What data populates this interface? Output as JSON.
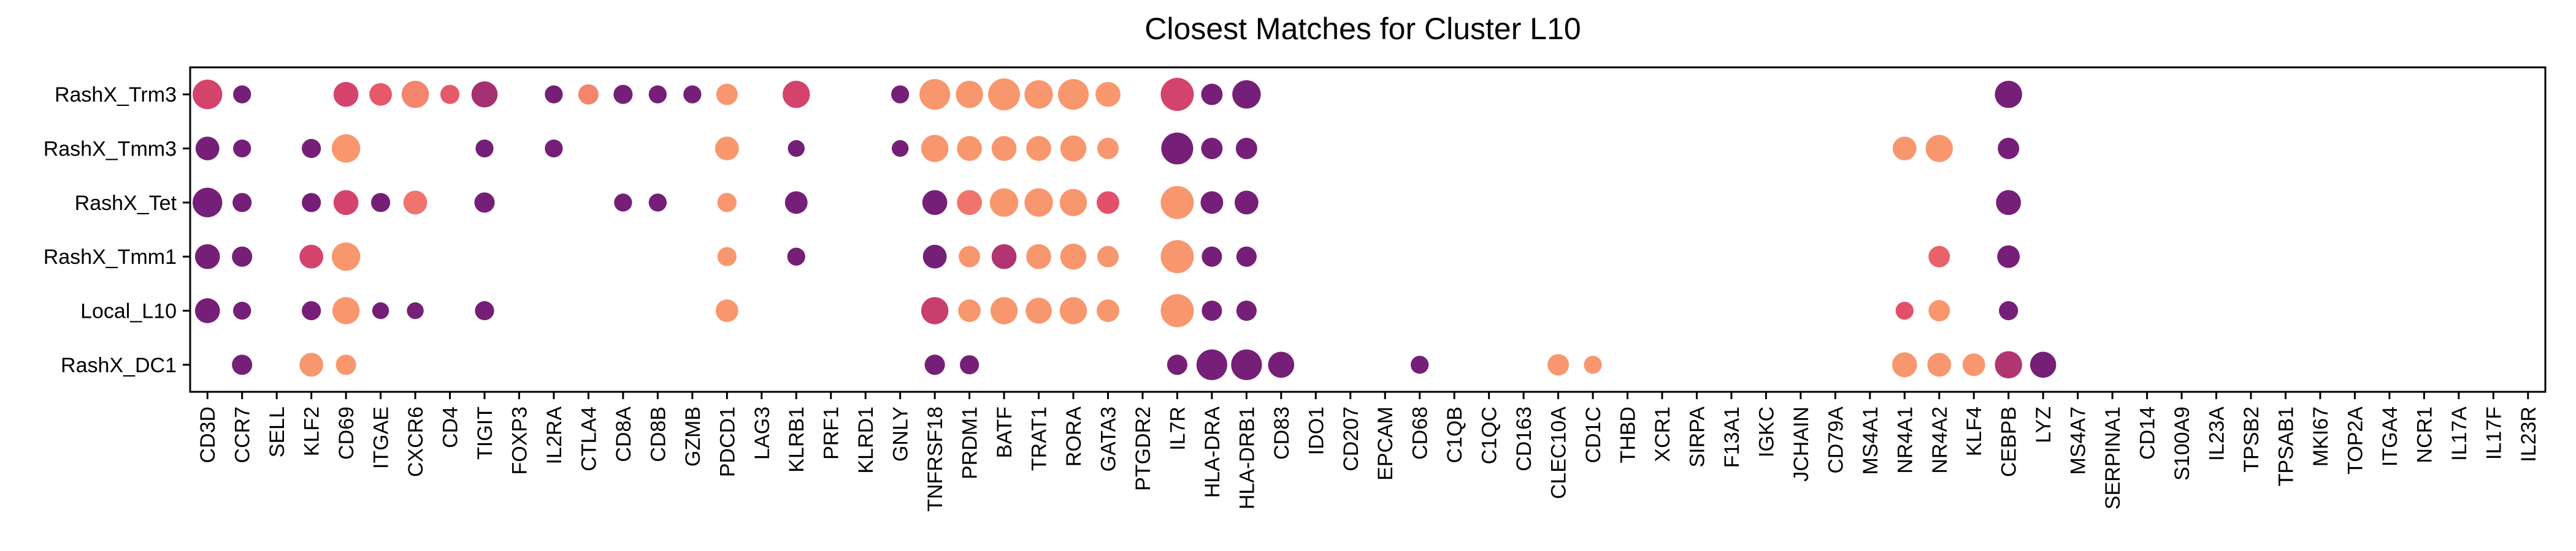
{
  "chart_data": {
    "type": "scatter",
    "title": "Closest Matches for Cluster L10",
    "xlabel": "",
    "ylabel": "",
    "grid": false,
    "legend": "none",
    "rows": [
      "RashX_Trm3",
      "RashX_Tmm3",
      "RashX_Tet",
      "RashX_Tmm1",
      "Local_L10",
      "RashX_DC1"
    ],
    "genes": [
      "CD3D",
      "CCR7",
      "SELL",
      "KLF2",
      "CD69",
      "ITGAE",
      "CXCR6",
      "CD4",
      "TIGIT",
      "FOXP3",
      "IL2RA",
      "CTLA4",
      "CD8A",
      "CD8B",
      "GZMB",
      "PDCD1",
      "LAG3",
      "KLRB1",
      "PRF1",
      "KLRD1",
      "GNLY",
      "TNFRSF18",
      "PRDM1",
      "BATF",
      "TRAT1",
      "RORA",
      "GATA3",
      "PTGDR2",
      "IL7R",
      "HLA-DRA",
      "HLA-DRB1",
      "CD83",
      "IDO1",
      "CD207",
      "EPCAM",
      "CD68",
      "C1QB",
      "C1QC",
      "CD163",
      "CLEC10A",
      "CD1C",
      "THBD",
      "XCR1",
      "SIRPA",
      "F13A1",
      "IGKC",
      "JCHAIN",
      "CD79A",
      "MS4A1",
      "NR4A1",
      "NR4A2",
      "KLF4",
      "CEBPB",
      "LYZ",
      "MS4A7",
      "SERPINA1",
      "CD14",
      "S100A9",
      "IL23A",
      "TPSB2",
      "TPSAB1",
      "MKI67",
      "TOP2A",
      "ITGA4",
      "NCR1",
      "IL17A",
      "IL17F",
      "IL23R"
    ],
    "color_scale": {
      "low": "#6a1b7a",
      "mid": "#e0476a",
      "high": "#fba06e"
    },
    "points": [
      {
        "row": "RashX_Trm3",
        "gene": "CD3D",
        "size": 0.85,
        "color": 0.45
      },
      {
        "row": "RashX_Trm3",
        "gene": "CCR7",
        "size": 0.35,
        "color": 0.05
      },
      {
        "row": "RashX_Trm3",
        "gene": "CD69",
        "size": 0.65,
        "color": 0.45
      },
      {
        "row": "RashX_Trm3",
        "gene": "ITGAE",
        "size": 0.55,
        "color": 0.6
      },
      {
        "row": "RashX_Trm3",
        "gene": "CXCR6",
        "size": 0.75,
        "color": 0.85
      },
      {
        "row": "RashX_Trm3",
        "gene": "CD4",
        "size": 0.4,
        "color": 0.6
      },
      {
        "row": "RashX_Trm3",
        "gene": "TIGIT",
        "size": 0.7,
        "color": 0.25
      },
      {
        "row": "RashX_Trm3",
        "gene": "IL2RA",
        "size": 0.35,
        "color": 0.05
      },
      {
        "row": "RashX_Trm3",
        "gene": "CTLA4",
        "size": 0.45,
        "color": 0.85
      },
      {
        "row": "RashX_Trm3",
        "gene": "CD8A",
        "size": 0.4,
        "color": 0.05
      },
      {
        "row": "RashX_Trm3",
        "gene": "CD8B",
        "size": 0.35,
        "color": 0.05
      },
      {
        "row": "RashX_Trm3",
        "gene": "GZMB",
        "size": 0.35,
        "color": 0.05
      },
      {
        "row": "RashX_Trm3",
        "gene": "PDCD1",
        "size": 0.5,
        "color": 0.95
      },
      {
        "row": "RashX_Trm3",
        "gene": "KLRB1",
        "size": 0.75,
        "color": 0.45
      },
      {
        "row": "RashX_Trm3",
        "gene": "GNLY",
        "size": 0.35,
        "color": 0.05
      },
      {
        "row": "RashX_Trm3",
        "gene": "TNFRSF18",
        "size": 0.9,
        "color": 0.95
      },
      {
        "row": "RashX_Trm3",
        "gene": "PRDM1",
        "size": 0.75,
        "color": 0.95
      },
      {
        "row": "RashX_Trm3",
        "gene": "BATF",
        "size": 0.95,
        "color": 0.95
      },
      {
        "row": "RashX_Trm3",
        "gene": "TRAT1",
        "size": 0.8,
        "color": 0.95
      },
      {
        "row": "RashX_Trm3",
        "gene": "RORA",
        "size": 0.9,
        "color": 0.95
      },
      {
        "row": "RashX_Trm3",
        "gene": "GATA3",
        "size": 0.65,
        "color": 0.95
      },
      {
        "row": "RashX_Trm3",
        "gene": "IL7R",
        "size": 1.0,
        "color": 0.45
      },
      {
        "row": "RashX_Trm3",
        "gene": "HLA-DRA",
        "size": 0.5,
        "color": 0.05
      },
      {
        "row": "RashX_Trm3",
        "gene": "HLA-DRB1",
        "size": 0.8,
        "color": 0.05
      },
      {
        "row": "RashX_Trm3",
        "gene": "CEBPB",
        "size": 0.75,
        "color": 0.05
      },
      {
        "row": "RashX_Tmm3",
        "gene": "CD3D",
        "size": 0.6,
        "color": 0.05
      },
      {
        "row": "RashX_Tmm3",
        "gene": "CCR7",
        "size": 0.35,
        "color": 0.05
      },
      {
        "row": "RashX_Tmm3",
        "gene": "KLF2",
        "size": 0.4,
        "color": 0.05
      },
      {
        "row": "RashX_Tmm3",
        "gene": "CD69",
        "size": 0.8,
        "color": 0.95
      },
      {
        "row": "RashX_Tmm3",
        "gene": "TIGIT",
        "size": 0.35,
        "color": 0.05
      },
      {
        "row": "RashX_Tmm3",
        "gene": "IL2RA",
        "size": 0.35,
        "color": 0.05
      },
      {
        "row": "RashX_Tmm3",
        "gene": "PDCD1",
        "size": 0.6,
        "color": 0.95
      },
      {
        "row": "RashX_Tmm3",
        "gene": "KLRB1",
        "size": 0.3,
        "color": 0.05
      },
      {
        "row": "RashX_Tmm3",
        "gene": "GNLY",
        "size": 0.3,
        "color": 0.05
      },
      {
        "row": "RashX_Tmm3",
        "gene": "TNFRSF18",
        "size": 0.75,
        "color": 0.95
      },
      {
        "row": "RashX_Tmm3",
        "gene": "PRDM1",
        "size": 0.65,
        "color": 0.95
      },
      {
        "row": "RashX_Tmm3",
        "gene": "BATF",
        "size": 0.65,
        "color": 0.95
      },
      {
        "row": "RashX_Tmm3",
        "gene": "TRAT1",
        "size": 0.65,
        "color": 0.95
      },
      {
        "row": "RashX_Tmm3",
        "gene": "RORA",
        "size": 0.7,
        "color": 0.95
      },
      {
        "row": "RashX_Tmm3",
        "gene": "GATA3",
        "size": 0.5,
        "color": 0.95
      },
      {
        "row": "RashX_Tmm3",
        "gene": "IL7R",
        "size": 0.95,
        "color": 0.05
      },
      {
        "row": "RashX_Tmm3",
        "gene": "HLA-DRA",
        "size": 0.5,
        "color": 0.05
      },
      {
        "row": "RashX_Tmm3",
        "gene": "HLA-DRB1",
        "size": 0.5,
        "color": 0.05
      },
      {
        "row": "RashX_Tmm3",
        "gene": "NR4A1",
        "size": 0.6,
        "color": 0.95
      },
      {
        "row": "RashX_Tmm3",
        "gene": "NR4A2",
        "size": 0.75,
        "color": 0.95
      },
      {
        "row": "RashX_Tmm3",
        "gene": "CEBPB",
        "size": 0.5,
        "color": 0.05
      },
      {
        "row": "RashX_Tet",
        "gene": "CD3D",
        "size": 0.85,
        "color": 0.05
      },
      {
        "row": "RashX_Tet",
        "gene": "CCR7",
        "size": 0.4,
        "color": 0.05
      },
      {
        "row": "RashX_Tet",
        "gene": "KLF2",
        "size": 0.4,
        "color": 0.05
      },
      {
        "row": "RashX_Tet",
        "gene": "CD69",
        "size": 0.65,
        "color": 0.45
      },
      {
        "row": "RashX_Tet",
        "gene": "ITGAE",
        "size": 0.4,
        "color": 0.05
      },
      {
        "row": "RashX_Tet",
        "gene": "CXCR6",
        "size": 0.6,
        "color": 0.75
      },
      {
        "row": "RashX_Tet",
        "gene": "TIGIT",
        "size": 0.45,
        "color": 0.05
      },
      {
        "row": "RashX_Tet",
        "gene": "CD8A",
        "size": 0.35,
        "color": 0.05
      },
      {
        "row": "RashX_Tet",
        "gene": "CD8B",
        "size": 0.35,
        "color": 0.05
      },
      {
        "row": "RashX_Tet",
        "gene": "PDCD1",
        "size": 0.4,
        "color": 0.95
      },
      {
        "row": "RashX_Tet",
        "gene": "KLRB1",
        "size": 0.55,
        "color": 0.05
      },
      {
        "row": "RashX_Tet",
        "gene": "TNFRSF18",
        "size": 0.65,
        "color": 0.05
      },
      {
        "row": "RashX_Tet",
        "gene": "PRDM1",
        "size": 0.65,
        "color": 0.75
      },
      {
        "row": "RashX_Tet",
        "gene": "BATF",
        "size": 0.8,
        "color": 0.95
      },
      {
        "row": "RashX_Tet",
        "gene": "TRAT1",
        "size": 0.8,
        "color": 0.95
      },
      {
        "row": "RashX_Tet",
        "gene": "RORA",
        "size": 0.75,
        "color": 0.95
      },
      {
        "row": "RashX_Tet",
        "gene": "GATA3",
        "size": 0.55,
        "color": 0.55
      },
      {
        "row": "RashX_Tet",
        "gene": "IL7R",
        "size": 1.0,
        "color": 0.95
      },
      {
        "row": "RashX_Tet",
        "gene": "HLA-DRA",
        "size": 0.55,
        "color": 0.05
      },
      {
        "row": "RashX_Tet",
        "gene": "HLA-DRB1",
        "size": 0.6,
        "color": 0.05
      },
      {
        "row": "RashX_Tet",
        "gene": "CEBPB",
        "size": 0.65,
        "color": 0.05
      },
      {
        "row": "RashX_Tmm1",
        "gene": "CD3D",
        "size": 0.65,
        "color": 0.05
      },
      {
        "row": "RashX_Tmm1",
        "gene": "CCR7",
        "size": 0.45,
        "color": 0.05
      },
      {
        "row": "RashX_Tmm1",
        "gene": "KLF2",
        "size": 0.6,
        "color": 0.45
      },
      {
        "row": "RashX_Tmm1",
        "gene": "CD69",
        "size": 0.8,
        "color": 0.95
      },
      {
        "row": "RashX_Tmm1",
        "gene": "PDCD1",
        "size": 0.4,
        "color": 0.95
      },
      {
        "row": "RashX_Tmm1",
        "gene": "KLRB1",
        "size": 0.35,
        "color": 0.05
      },
      {
        "row": "RashX_Tmm1",
        "gene": "TNFRSF18",
        "size": 0.6,
        "color": 0.05
      },
      {
        "row": "RashX_Tmm1",
        "gene": "PRDM1",
        "size": 0.5,
        "color": 0.95
      },
      {
        "row": "RashX_Tmm1",
        "gene": "BATF",
        "size": 0.65,
        "color": 0.3
      },
      {
        "row": "RashX_Tmm1",
        "gene": "TRAT1",
        "size": 0.65,
        "color": 0.95
      },
      {
        "row": "RashX_Tmm1",
        "gene": "RORA",
        "size": 0.7,
        "color": 0.95
      },
      {
        "row": "RashX_Tmm1",
        "gene": "GATA3",
        "size": 0.5,
        "color": 0.95
      },
      {
        "row": "RashX_Tmm1",
        "gene": "IL7R",
        "size": 1.0,
        "color": 0.95
      },
      {
        "row": "RashX_Tmm1",
        "gene": "HLA-DRA",
        "size": 0.45,
        "color": 0.05
      },
      {
        "row": "RashX_Tmm1",
        "gene": "HLA-DRB1",
        "size": 0.45,
        "color": 0.05
      },
      {
        "row": "RashX_Tmm1",
        "gene": "NR4A2",
        "size": 0.5,
        "color": 0.65
      },
      {
        "row": "RashX_Tmm1",
        "gene": "CEBPB",
        "size": 0.55,
        "color": 0.05
      },
      {
        "row": "Local_L10",
        "gene": "CD3D",
        "size": 0.65,
        "color": 0.05
      },
      {
        "row": "Local_L10",
        "gene": "CCR7",
        "size": 0.35,
        "color": 0.05
      },
      {
        "row": "Local_L10",
        "gene": "KLF2",
        "size": 0.4,
        "color": 0.05
      },
      {
        "row": "Local_L10",
        "gene": "CD69",
        "size": 0.75,
        "color": 0.95
      },
      {
        "row": "Local_L10",
        "gene": "ITGAE",
        "size": 0.3,
        "color": 0.05
      },
      {
        "row": "Local_L10",
        "gene": "CXCR6",
        "size": 0.3,
        "color": 0.05
      },
      {
        "row": "Local_L10",
        "gene": "TIGIT",
        "size": 0.4,
        "color": 0.05
      },
      {
        "row": "Local_L10",
        "gene": "PDCD1",
        "size": 0.55,
        "color": 0.95
      },
      {
        "row": "Local_L10",
        "gene": "TNFRSF18",
        "size": 0.75,
        "color": 0.4
      },
      {
        "row": "Local_L10",
        "gene": "PRDM1",
        "size": 0.55,
        "color": 0.95
      },
      {
        "row": "Local_L10",
        "gene": "BATF",
        "size": 0.75,
        "color": 0.95
      },
      {
        "row": "Local_L10",
        "gene": "TRAT1",
        "size": 0.7,
        "color": 0.95
      },
      {
        "row": "Local_L10",
        "gene": "RORA",
        "size": 0.75,
        "color": 0.95
      },
      {
        "row": "Local_L10",
        "gene": "GATA3",
        "size": 0.55,
        "color": 0.95
      },
      {
        "row": "Local_L10",
        "gene": "IL7R",
        "size": 1.0,
        "color": 0.95
      },
      {
        "row": "Local_L10",
        "gene": "HLA-DRA",
        "size": 0.45,
        "color": 0.05
      },
      {
        "row": "Local_L10",
        "gene": "HLA-DRB1",
        "size": 0.45,
        "color": 0.05
      },
      {
        "row": "Local_L10",
        "gene": "NR4A1",
        "size": 0.35,
        "color": 0.55
      },
      {
        "row": "Local_L10",
        "gene": "NR4A2",
        "size": 0.5,
        "color": 0.95
      },
      {
        "row": "Local_L10",
        "gene": "CEBPB",
        "size": 0.4,
        "color": 0.05
      },
      {
        "row": "RashX_DC1",
        "gene": "CCR7",
        "size": 0.45,
        "color": 0.05
      },
      {
        "row": "RashX_DC1",
        "gene": "KLF2",
        "size": 0.6,
        "color": 0.95
      },
      {
        "row": "RashX_DC1",
        "gene": "CD69",
        "size": 0.45,
        "color": 0.95
      },
      {
        "row": "RashX_DC1",
        "gene": "TNFRSF18",
        "size": 0.45,
        "color": 0.05
      },
      {
        "row": "RashX_DC1",
        "gene": "PRDM1",
        "size": 0.4,
        "color": 0.05
      },
      {
        "row": "RashX_DC1",
        "gene": "IL7R",
        "size": 0.45,
        "color": 0.05
      },
      {
        "row": "RashX_DC1",
        "gene": "HLA-DRA",
        "size": 0.9,
        "color": 0.05
      },
      {
        "row": "RashX_DC1",
        "gene": "HLA-DRB1",
        "size": 0.9,
        "color": 0.05
      },
      {
        "row": "RashX_DC1",
        "gene": "CD83",
        "size": 0.7,
        "color": 0.05
      },
      {
        "row": "RashX_DC1",
        "gene": "CD68",
        "size": 0.35,
        "color": 0.05
      },
      {
        "row": "RashX_DC1",
        "gene": "CLEC10A",
        "size": 0.5,
        "color": 0.95
      },
      {
        "row": "RashX_DC1",
        "gene": "CD1C",
        "size": 0.35,
        "color": 0.95
      },
      {
        "row": "RashX_DC1",
        "gene": "NR4A1",
        "size": 0.65,
        "color": 0.95
      },
      {
        "row": "RashX_DC1",
        "gene": "NR4A2",
        "size": 0.6,
        "color": 0.95
      },
      {
        "row": "RashX_DC1",
        "gene": "KLF4",
        "size": 0.55,
        "color": 0.95
      },
      {
        "row": "RashX_DC1",
        "gene": "CEBPB",
        "size": 0.75,
        "color": 0.3
      },
      {
        "row": "RashX_DC1",
        "gene": "LYZ",
        "size": 0.7,
        "color": 0.05
      }
    ]
  }
}
